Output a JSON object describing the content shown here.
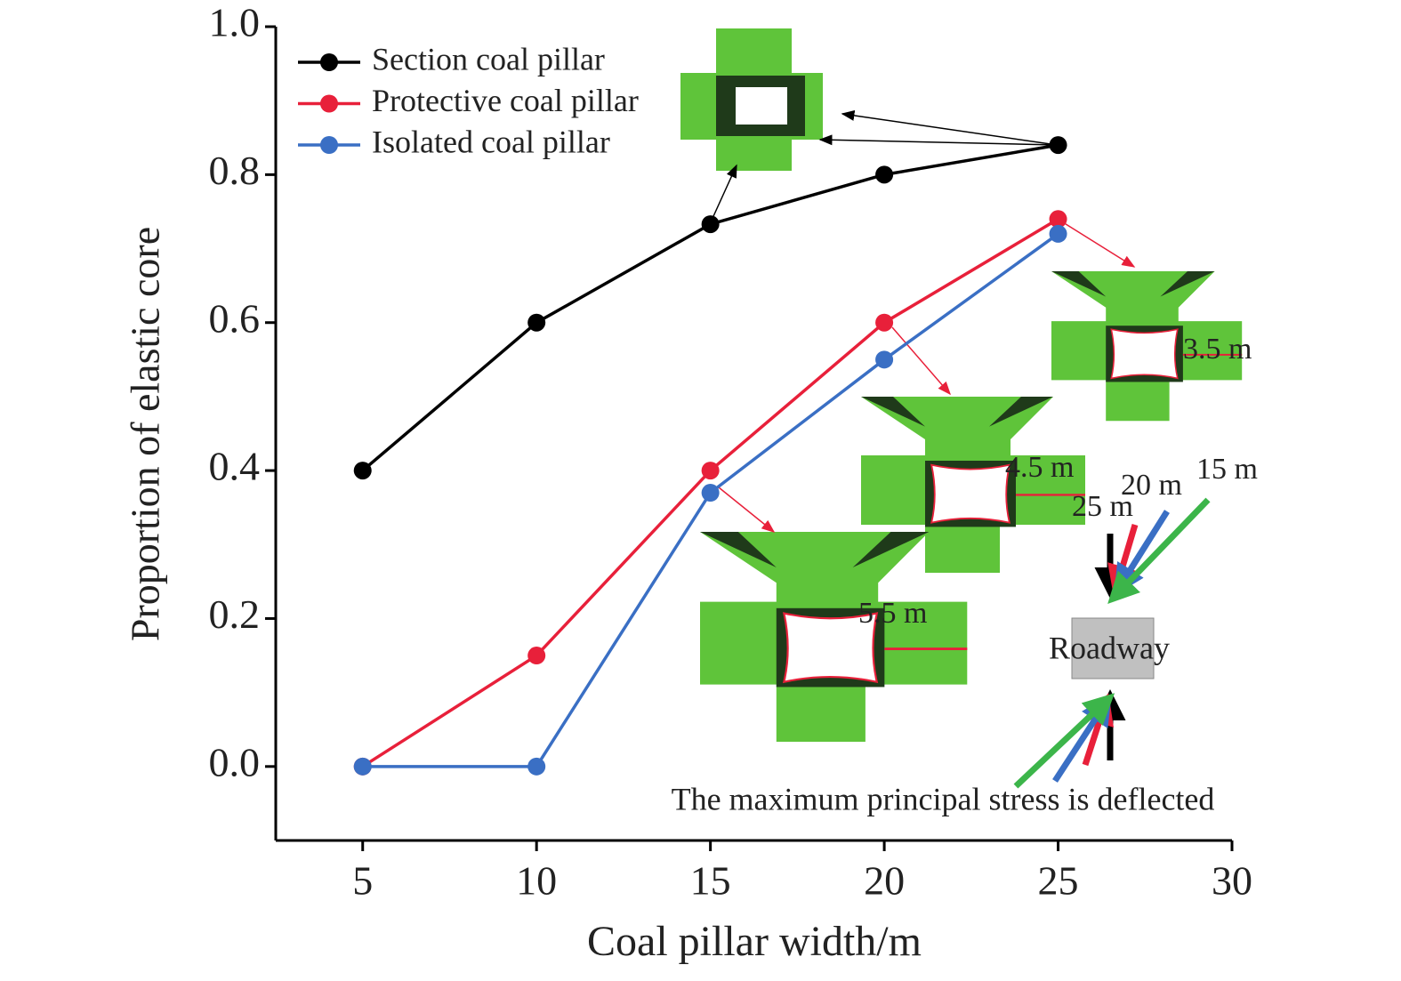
{
  "chart_data": {
    "type": "line",
    "x_label": "Coal pillar width/m",
    "y_label": "Proportion of elastic core",
    "x": [
      5,
      10,
      15,
      20,
      25
    ],
    "series": [
      {
        "name": "Section coal pillar",
        "color": "#000000",
        "values": [
          0.4,
          0.6,
          0.733,
          0.8,
          0.84
        ]
      },
      {
        "name": "Protective coal pillar",
        "color": "#e8203a",
        "values": [
          0,
          0.15,
          0.4,
          0.6,
          0.74
        ]
      },
      {
        "name": "Isolated coal pillar",
        "color": "#3a6fc4",
        "values": [
          0,
          0,
          0.37,
          0.55,
          0.72
        ]
      }
    ],
    "xlim": [
      2.5,
      30
    ],
    "xticks": [
      5,
      10,
      15,
      20,
      25,
      30
    ],
    "ylim": [
      -0.1,
      1.0
    ],
    "yticks": [
      {
        "value": 0,
        "label": "0.0"
      },
      0.2,
      0.4,
      0.6,
      0.8,
      {
        "value": 1,
        "label": "1.0"
      }
    ],
    "legend": "upper left",
    "annotations": [
      "3.5 m",
      "4.5 m",
      "5.5 m",
      "25 m",
      "20 m",
      "15 m",
      "Roadway",
      "The maximum principal stress is deflected"
    ]
  }
}
